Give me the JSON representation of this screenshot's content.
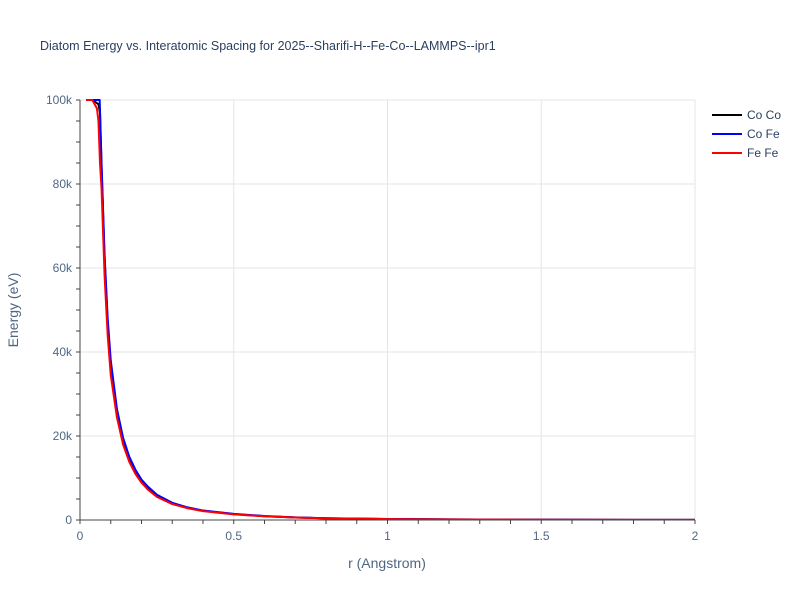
{
  "chart_data": {
    "type": "line",
    "title": "Diatom Energy vs. Interatomic Spacing for 2025--Sharifi-H--Fe-Co--LAMMPS--ipr1",
    "xlabel": "r (Angstrom)",
    "ylabel": "Energy (eV)",
    "xlim": [
      0,
      2
    ],
    "ylim": [
      0,
      100000
    ],
    "grid": true,
    "legend_position": "top-right",
    "x_ticks": [
      {
        "value": 0,
        "label": "0"
      },
      {
        "value": 0.5,
        "label": "0.5"
      },
      {
        "value": 1,
        "label": "1"
      },
      {
        "value": 1.5,
        "label": "1.5"
      },
      {
        "value": 2,
        "label": "2"
      }
    ],
    "y_ticks": [
      {
        "value": 0,
        "label": "0"
      },
      {
        "value": 20000,
        "label": "20k"
      },
      {
        "value": 40000,
        "label": "40k"
      },
      {
        "value": 60000,
        "label": "60k"
      },
      {
        "value": 80000,
        "label": "80k"
      },
      {
        "value": 100000,
        "label": "100k"
      }
    ],
    "series": [
      {
        "name": "Co Co",
        "color": "#000000",
        "x": [
          0.02,
          0.04,
          0.06,
          0.065,
          0.07,
          0.08,
          0.09,
          0.1,
          0.12,
          0.14,
          0.16,
          0.18,
          0.2,
          0.22,
          0.25,
          0.3,
          0.35,
          0.4,
          0.5,
          0.6,
          0.7,
          0.8,
          1.0,
          1.2,
          1.5,
          1.8,
          2.0
        ],
        "y": [
          100000,
          100000,
          99000,
          97000,
          84000,
          62000,
          47000,
          37000,
          26000,
          19200,
          14800,
          11700,
          9400,
          7800,
          5900,
          4000,
          2900,
          2200,
          1400,
          900,
          600,
          420,
          230,
          140,
          70,
          40,
          30
        ]
      },
      {
        "name": "Co Fe",
        "color": "#0000ff",
        "x": [
          0.02,
          0.04,
          0.06,
          0.064,
          0.07,
          0.08,
          0.09,
          0.1,
          0.12,
          0.14,
          0.16,
          0.18,
          0.2,
          0.22,
          0.25,
          0.3,
          0.35,
          0.4,
          0.5,
          0.6,
          0.7,
          0.8,
          1.0,
          1.2,
          1.5,
          1.8,
          2.0
        ],
        "y": [
          100000,
          100000,
          100000,
          100000,
          85000,
          63000,
          48000,
          38000,
          26500,
          19600,
          15100,
          12000,
          9600,
          8000,
          6000,
          4100,
          3000,
          2250,
          1450,
          950,
          620,
          430,
          240,
          145,
          75,
          42,
          32
        ]
      },
      {
        "name": "Fe Fe",
        "color": "#ff0000",
        "x": [
          0.02,
          0.04,
          0.055,
          0.06,
          0.065,
          0.07,
          0.08,
          0.09,
          0.1,
          0.12,
          0.14,
          0.16,
          0.18,
          0.2,
          0.22,
          0.25,
          0.3,
          0.35,
          0.4,
          0.5,
          0.6,
          0.7,
          0.8,
          1.0,
          1.2,
          1.5,
          1.8,
          2.0
        ],
        "y": [
          100000,
          100000,
          98000,
          95000,
          85000,
          79000,
          58000,
          44000,
          34500,
          24500,
          18000,
          13900,
          11000,
          8900,
          7300,
          5500,
          3800,
          2800,
          2100,
          1350,
          880,
          580,
          400,
          220,
          130,
          65,
          38,
          28
        ]
      }
    ]
  }
}
